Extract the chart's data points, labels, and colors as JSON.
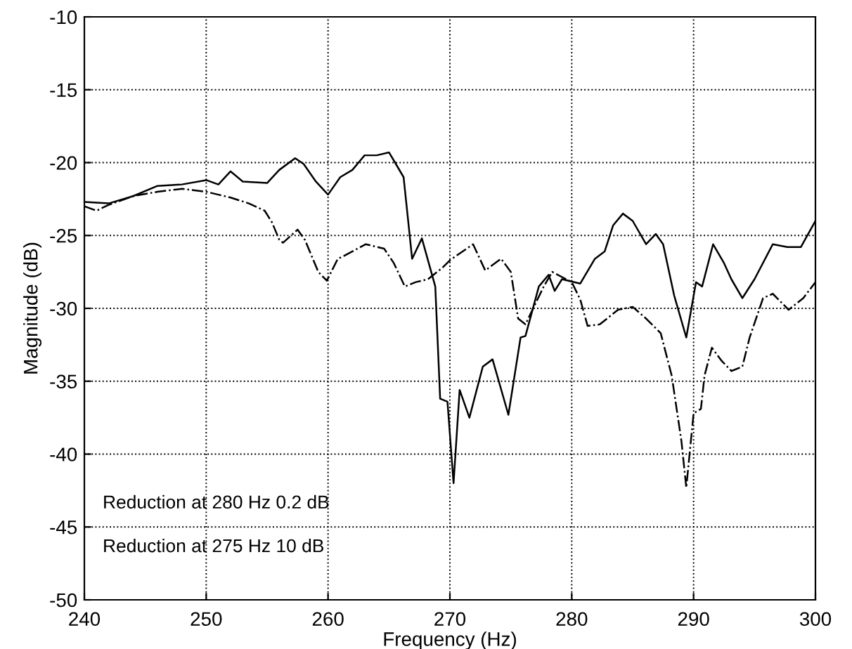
{
  "chart_data": {
    "type": "line",
    "xlabel": "Frequency (Hz)",
    "ylabel": "Magnitude (dB)",
    "xlim": [
      240,
      300
    ],
    "ylim": [
      -50,
      -10
    ],
    "xticks": [
      240,
      250,
      260,
      270,
      280,
      290,
      300
    ],
    "yticks": [
      -50,
      -45,
      -40,
      -35,
      -30,
      -25,
      -20,
      -15,
      -10
    ],
    "grid": true,
    "marker": "none",
    "annotations": [
      "Reduction at 280 Hz 0.2 dB",
      "Reduction at 275 Hz 10 dB"
    ],
    "series": [
      {
        "color": "#000000",
        "line_style": "solid",
        "x": [
          240,
          242,
          244,
          246,
          248,
          250,
          251,
          252,
          253,
          255,
          256,
          257.3,
          258,
          259,
          260,
          261,
          262,
          263,
          264,
          265,
          265.5,
          266.2,
          266.9,
          267.7,
          268.8,
          269.2,
          269.8,
          270.3,
          270.8,
          271.6,
          272.7,
          273.5,
          274.8,
          275.8,
          276.2,
          277.3,
          278.1,
          278.6,
          279.2,
          280.7,
          281.9,
          282.7,
          283.4,
          284.2,
          285.0,
          286.1,
          286.9,
          287.5,
          288.4,
          289.4,
          290.2,
          290.7,
          291.6,
          292.5,
          293.1,
          294.0,
          295.0,
          296.5,
          297.7,
          298.8,
          300
        ],
        "values": [
          -22.7,
          -22.8,
          -22.3,
          -21.6,
          -21.5,
          -21.2,
          -21.5,
          -20.6,
          -21.3,
          -21.4,
          -20.5,
          -19.7,
          -20.1,
          -21.3,
          -22.2,
          -21.0,
          -20.5,
          -19.5,
          -19.5,
          -19.3,
          -20,
          -21,
          -26.6,
          -25.2,
          -28.5,
          -36.2,
          -36.4,
          -42.0,
          -35.6,
          -37.5,
          -34.0,
          -33.5,
          -37.3,
          -32.0,
          -31.9,
          -28.5,
          -27.7,
          -28.8,
          -28.0,
          -28.3,
          -26.6,
          -26.1,
          -24.3,
          -23.5,
          -24.0,
          -25.6,
          -24.9,
          -25.6,
          -29.1,
          -32.0,
          -28.2,
          -28.5,
          -25.6,
          -26.9,
          -28.0,
          -29.3,
          -28.0,
          -25.6,
          -25.8,
          -25.8,
          -24.0
        ]
      },
      {
        "color": "#000000",
        "line_style": "dashed",
        "x": [
          240,
          241,
          242,
          244,
          246,
          248,
          250,
          252,
          253.5,
          254.8,
          255.4,
          256,
          256.3,
          257.5,
          258.1,
          259.2,
          259.9,
          260.8,
          261.3,
          263.1,
          264.6,
          265.4,
          266.3,
          267.2,
          268.2,
          269.4,
          270,
          271.9,
          272.9,
          274.2,
          275,
          275.6,
          276.2,
          277.7,
          278.4,
          280,
          280.7,
          281.3,
          282.3,
          283.8,
          285.0,
          286.1,
          287.3,
          288.2,
          289.0,
          289.4,
          290.0,
          290.6,
          290.9,
          291.5,
          292.3,
          293.1,
          294.0,
          294.6,
          295.7,
          296.5,
          297.8,
          299.0,
          300
        ],
        "values": [
          -23,
          -23.3,
          -22.9,
          -22.3,
          -22.0,
          -21.8,
          -22,
          -22.4,
          -22.8,
          -23.3,
          -24.1,
          -25.3,
          -25.5,
          -24.6,
          -25.3,
          -27.5,
          -28.1,
          -26.6,
          -26.4,
          -25.6,
          -25.9,
          -26.9,
          -28.5,
          -28.2,
          -28.0,
          -27.2,
          -26.7,
          -25.6,
          -27.4,
          -26.6,
          -27.5,
          -30.7,
          -31.1,
          -28.5,
          -27.5,
          -28.2,
          -29.4,
          -31.2,
          -31.1,
          -30.1,
          -29.9,
          -30.7,
          -31.7,
          -34.6,
          -39.1,
          -42.3,
          -37.2,
          -36.9,
          -34.6,
          -32.7,
          -33.6,
          -34.3,
          -34.0,
          -32.0,
          -29.3,
          -29.0,
          -30.1,
          -29.3,
          -28.2
        ]
      }
    ]
  }
}
